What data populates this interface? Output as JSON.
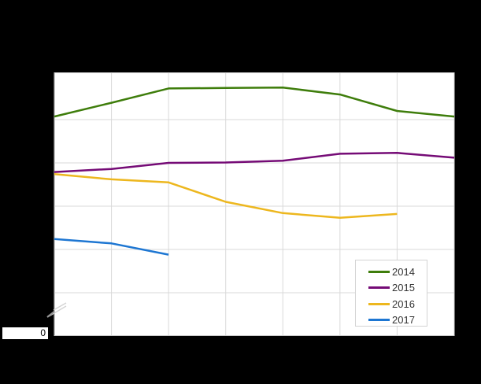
{
  "background_color": "#000000",
  "plot": {
    "bg_color": "#ffffff",
    "grid_color": "#d9d9d9",
    "axis_color": "#c9c9c9",
    "axis_break_mark_color_on_black": "#949494",
    "axis_break_mark_color_on_white": "#d4d4d4"
  },
  "y_axis": {
    "zero_label": "0",
    "has_axis_break": true,
    "tick_labels_visible": [
      "0"
    ]
  },
  "legend": {
    "position": "bottom-right",
    "items": [
      {
        "label": "2014",
        "color": "#3e7d0b"
      },
      {
        "label": "2015",
        "color": "#750b76"
      },
      {
        "label": "2016",
        "color": "#edb71e"
      },
      {
        "label": "2017",
        "color": "#1d76d2"
      }
    ]
  },
  "chart_data": {
    "type": "line",
    "title": "",
    "xlabel": "",
    "ylabel": "",
    "x": [
      1,
      2,
      3,
      4,
      5,
      6,
      7,
      8
    ],
    "x_tick_labels": [],
    "y_tick_labels": [
      "0"
    ],
    "ylim": [
      0,
      6
    ],
    "y_unit_note": "values in gridline units; only the 0 tick is labeled and the axis is broken above 0",
    "grid": true,
    "legend_position": "bottom-right",
    "series": [
      {
        "name": "2014",
        "color": "#3e7d0b",
        "values": [
          5.07,
          5.39,
          5.72,
          5.73,
          5.74,
          5.58,
          5.2,
          5.07
        ]
      },
      {
        "name": "2015",
        "color": "#750b76",
        "values": [
          3.79,
          3.86,
          4.0,
          4.01,
          4.05,
          4.21,
          4.23,
          4.12
        ]
      },
      {
        "name": "2016",
        "color": "#edb71e",
        "values": [
          3.74,
          3.62,
          3.55,
          3.1,
          2.84,
          2.73,
          2.82
        ]
      },
      {
        "name": "2017",
        "color": "#1d76d2",
        "values": [
          2.24,
          2.14,
          1.88
        ]
      }
    ]
  }
}
